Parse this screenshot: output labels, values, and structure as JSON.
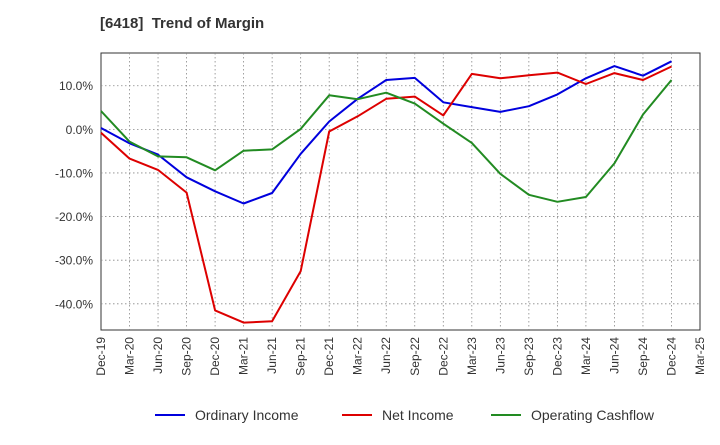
{
  "chart_data": {
    "type": "line",
    "title": "[6418]  Trend of Margin",
    "xlabel": "",
    "ylabel": "",
    "categories": [
      "Dec-19",
      "Mar-20",
      "Jun-20",
      "Sep-20",
      "Dec-20",
      "Mar-21",
      "Jun-21",
      "Sep-21",
      "Dec-21",
      "Mar-22",
      "Jun-22",
      "Sep-22",
      "Dec-22",
      "Mar-23",
      "Jun-23",
      "Sep-23",
      "Dec-23",
      "Mar-24",
      "Jun-24",
      "Sep-24",
      "Dec-24",
      "Mar-25"
    ],
    "ylim": [
      -46,
      17.5
    ],
    "yticks": [
      10,
      0,
      -10,
      -20,
      -30,
      -40
    ],
    "ytick_labels": [
      "10.0%",
      "0.0%",
      "-10.0%",
      "-20.0%",
      "-30.0%",
      "-40.0%"
    ],
    "grid": true,
    "legend_position": "bottom",
    "series": [
      {
        "name": "Ordinary Income",
        "color": "#0000dd",
        "values": [
          0.3,
          -3.2,
          -5.8,
          -11.0,
          -14.2,
          -17.0,
          -14.6,
          -5.6,
          1.8,
          7.0,
          11.3,
          11.8,
          6.2,
          5.1,
          4.0,
          5.3,
          8.0,
          11.7,
          14.5,
          12.3,
          15.6,
          null
        ]
      },
      {
        "name": "Net Income",
        "color": "#dd0000",
        "values": [
          -0.8,
          -6.7,
          -9.3,
          -14.5,
          -41.5,
          -44.3,
          -44.0,
          -32.5,
          -0.5,
          3.0,
          7.0,
          7.5,
          3.2,
          12.7,
          11.7,
          12.4,
          13.0,
          10.4,
          12.9,
          11.3,
          14.4,
          null
        ]
      },
      {
        "name": "Operating Cashflow",
        "color": "#228b22",
        "values": [
          4.2,
          -2.8,
          -6.2,
          -6.4,
          -9.4,
          -4.9,
          -4.6,
          0.1,
          7.8,
          6.9,
          8.4,
          5.9,
          1.3,
          -3.1,
          -10.2,
          -15.0,
          -16.6,
          -15.5,
          -7.8,
          3.4,
          11.3,
          null
        ]
      }
    ]
  }
}
